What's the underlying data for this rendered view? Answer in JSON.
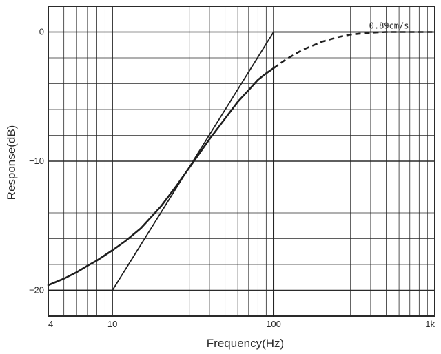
{
  "chart_data": {
    "type": "line",
    "title": "",
    "xlabel": "Frequency(Hz)",
    "ylabel": "Response(dB)",
    "x_scale": "log",
    "xlim": [
      4,
      1000
    ],
    "ylim": [
      -22,
      2
    ],
    "grid": true,
    "x_tick_labels": [
      {
        "value": 4,
        "label": "4"
      },
      {
        "value": 10,
        "label": "10"
      },
      {
        "value": 100,
        "label": "100"
      },
      {
        "value": 1000,
        "label": "1k"
      }
    ],
    "y_tick_labels": [
      {
        "value": 0,
        "label": "0"
      },
      {
        "value": -10,
        "label": "−10"
      },
      {
        "value": -20,
        "label": "−20"
      }
    ],
    "annotation": {
      "text": "0.89cm/s",
      "x": 520,
      "y": 0
    },
    "series": [
      {
        "style": "solid",
        "points": [
          [
            4,
            -19.6
          ],
          [
            5,
            -19.1
          ],
          [
            6,
            -18.6
          ],
          [
            7,
            -18.1
          ],
          [
            8,
            -17.7
          ],
          [
            10,
            -16.9
          ],
          [
            12,
            -16.2
          ],
          [
            15,
            -15.2
          ],
          [
            20,
            -13.5
          ],
          [
            25,
            -11.9
          ],
          [
            30,
            -10.5
          ],
          [
            40,
            -8.3
          ],
          [
            50,
            -6.7
          ],
          [
            60,
            -5.4
          ],
          [
            70,
            -4.5
          ],
          [
            80,
            -3.7
          ],
          [
            90,
            -3.2
          ],
          [
            100,
            -2.8
          ]
        ]
      },
      {
        "style": "dashed",
        "points": [
          [
            100,
            -2.8
          ],
          [
            120,
            -2.1
          ],
          [
            150,
            -1.4
          ],
          [
            200,
            -0.75
          ],
          [
            250,
            -0.4
          ],
          [
            300,
            -0.2
          ],
          [
            400,
            -0.05
          ],
          [
            500,
            0
          ],
          [
            1000,
            0
          ]
        ]
      },
      {
        "style": "solid-thin",
        "points": [
          [
            4,
            -20
          ],
          [
            10,
            -20
          ],
          [
            100,
            0
          ],
          [
            1000,
            0
          ]
        ]
      },
      {
        "style": "vertical-marker",
        "points": [
          [
            100,
            -22
          ],
          [
            100,
            0
          ]
        ]
      }
    ]
  }
}
